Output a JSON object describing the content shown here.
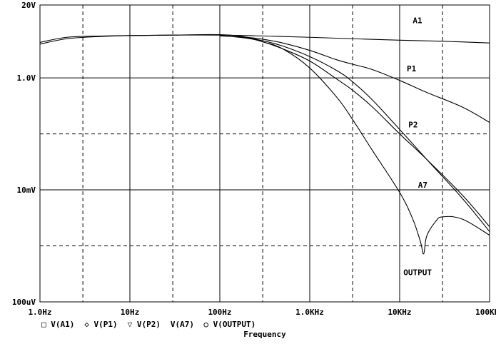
{
  "chart_data": {
    "type": "line",
    "title": "",
    "xlabel": "Frequency",
    "ylabel": "",
    "x_scale": "log",
    "y_scale": "log",
    "xlim_hz": [
      1,
      100000
    ],
    "ylim_volts": [
      0.0001,
      20
    ],
    "x_ticks": [
      {
        "label": "1.0Hz",
        "value": 1
      },
      {
        "label": "10Hz",
        "value": 10
      },
      {
        "label": "100Hz",
        "value": 100
      },
      {
        "label": "1.0KHz",
        "value": 1000
      },
      {
        "label": "10KHz",
        "value": 10000
      },
      {
        "label": "100KHz",
        "value": 100000
      }
    ],
    "y_ticks": [
      {
        "label": "20V",
        "value": 20
      },
      {
        "label": "1.0V",
        "value": 1
      },
      {
        "label": "10mV",
        "value": 0.01
      },
      {
        "label": "100uV",
        "value": 0.0001
      }
    ],
    "minor_grid_x_hz": [
      3,
      30,
      300,
      3000,
      30000
    ],
    "minor_grid_y_volts": [
      0.1,
      0.001
    ],
    "grid": true,
    "legend_position": "bottom-left",
    "legend": [
      {
        "symbol": "□",
        "label": "V(A1)"
      },
      {
        "symbol": "◇",
        "label": "V(P1)"
      },
      {
        "symbol": "▽",
        "label": "V(P2)"
      },
      {
        "symbol": "",
        "label": "V(A7)"
      },
      {
        "symbol": "○",
        "label": "V(OUTPUT)"
      }
    ],
    "series": [
      {
        "name": "A1",
        "label": "A1",
        "label_point": {
          "x": 14000,
          "y": 9.5
        },
        "x": [
          1,
          2,
          5,
          10,
          30,
          100,
          300,
          1000,
          3000,
          10000,
          30000,
          100000
        ],
        "y": [
          4.3,
          5.3,
          5.6,
          5.7,
          5.8,
          5.8,
          5.6,
          5.3,
          5.0,
          4.7,
          4.5,
          4.2
        ]
      },
      {
        "name": "P1",
        "label": "P1",
        "label_point": {
          "x": 12000,
          "y": 1.3
        },
        "x": [
          100,
          200,
          300,
          500,
          1000,
          2000,
          3000,
          5000,
          10000,
          20000,
          50000,
          100000
        ],
        "y": [
          5.6,
          5.3,
          4.9,
          4.2,
          3.1,
          2.1,
          1.75,
          1.4,
          0.9,
          0.55,
          0.3,
          0.16
        ]
      },
      {
        "name": "P2",
        "label": "P2",
        "label_point": {
          "x": 12500,
          "y": 0.13
        },
        "x": [
          100,
          200,
          300,
          500,
          1000,
          2000,
          3000,
          5000,
          10000,
          20000,
          50000,
          100000
        ],
        "y": [
          5.7,
          5.2,
          4.6,
          3.7,
          2.4,
          1.35,
          0.85,
          0.4,
          0.12,
          0.035,
          0.007,
          0.0018
        ]
      },
      {
        "name": "A7",
        "label": "A7",
        "label_point": {
          "x": 16000,
          "y": 0.011
        },
        "x": [
          100,
          200,
          300,
          500,
          1000,
          2000,
          3000,
          5000,
          10000,
          20000,
          50000,
          100000
        ],
        "y": [
          5.7,
          5.1,
          4.4,
          3.3,
          2.0,
          0.95,
          0.6,
          0.3,
          0.1,
          0.035,
          0.008,
          0.0022
        ]
      },
      {
        "name": "OUTPUT",
        "label": "OUTPUT",
        "label_point": {
          "x": 11000,
          "y": 0.0003
        },
        "x": [
          1,
          2,
          5,
          10,
          30,
          100,
          200,
          300,
          500,
          1000,
          2000,
          3000,
          5000,
          10000,
          14000,
          17000,
          18500,
          20000,
          25000,
          30000,
          50000,
          100000
        ],
        "y": [
          4.0,
          5.0,
          5.5,
          5.7,
          5.8,
          5.9,
          5.3,
          4.4,
          3.3,
          1.5,
          0.45,
          0.18,
          0.05,
          0.009,
          0.003,
          0.0012,
          0.00072,
          0.0015,
          0.0027,
          0.0033,
          0.003,
          0.00155
        ]
      }
    ]
  }
}
